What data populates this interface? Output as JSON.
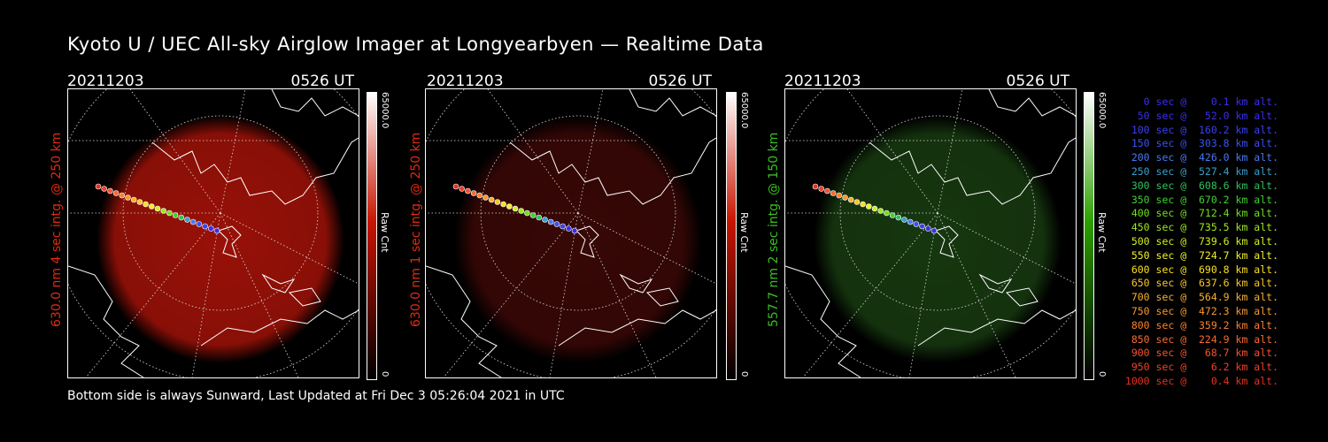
{
  "title": "Kyoto U / UEC All-sky Airglow Imager at Longyearbyen — Realtime Data",
  "panels": [
    {
      "date": "20211203",
      "time": "0526 UT",
      "ylabel": "630.0 nm  4 sec intg. @ 250 km",
      "label_color": "#e02a10",
      "cbar_max": "65000.0",
      "cbar_min": "0",
      "cbar_unit": "Raw Cnt",
      "cbar_color": "#c81400",
      "glow_color": "#a01208"
    },
    {
      "date": "20211203",
      "time": "0526 UT",
      "ylabel": "630.0 nm  1 sec intg. @ 250 km",
      "label_color": "#e02a10",
      "cbar_max": "65000.0",
      "cbar_min": "0",
      "cbar_unit": "Raw Cnt",
      "cbar_color": "#c81400",
      "glow_color": "#3a0806"
    },
    {
      "date": "20211203",
      "time": "0526 UT",
      "ylabel": "557.7 nm  2 sec intg. @ 150 km",
      "label_color": "#39c020",
      "cbar_max": "65000.0",
      "cbar_min": "0",
      "cbar_unit": "Raw Cnt",
      "cbar_color": "#2ca000",
      "glow_color": "#173a10"
    }
  ],
  "footer": "Bottom side is always Sunward, Last Updated at Fri Dec  3 05:26:04 2021 in UTC",
  "trajectory_legend": [
    {
      "text": "   0 sec @    0.1 km alt.",
      "color": "#3a2ee8"
    },
    {
      "text": "  50 sec @   52.0 km alt.",
      "color": "#3a2ee8"
    },
    {
      "text": " 100 sec @  160.2 km alt.",
      "color": "#3a40f0"
    },
    {
      "text": " 150 sec @  303.8 km alt.",
      "color": "#3a52f0"
    },
    {
      "text": " 200 sec @  426.0 km alt.",
      "color": "#4a78f0"
    },
    {
      "text": " 250 sec @  527.4 km alt.",
      "color": "#3aa0c8"
    },
    {
      "text": " 300 sec @  608.6 km alt.",
      "color": "#30c060"
    },
    {
      "text": " 350 sec @  670.2 km alt.",
      "color": "#40d030"
    },
    {
      "text": " 400 sec @  712.4 km alt.",
      "color": "#70e020"
    },
    {
      "text": " 450 sec @  735.5 km alt.",
      "color": "#a0e820"
    },
    {
      "text": " 500 sec @  739.6 km alt.",
      "color": "#d0f020"
    },
    {
      "text": " 550 sec @  724.7 km alt.",
      "color": "#f0f030"
    },
    {
      "text": " 600 sec @  690.8 km alt.",
      "color": "#f8e020"
    },
    {
      "text": " 650 sec @  637.6 km alt.",
      "color": "#f8c828"
    },
    {
      "text": " 700 sec @  564.9 km alt.",
      "color": "#f8b030"
    },
    {
      "text": " 750 sec @  472.3 km alt.",
      "color": "#f89830"
    },
    {
      "text": " 800 sec @  359.2 km alt.",
      "color": "#f88030"
    },
    {
      "text": " 850 sec @  224.9 km alt.",
      "color": "#f86a30"
    },
    {
      "text": " 900 sec @   68.7 km alt.",
      "color": "#f85030"
    },
    {
      "text": " 950 sec @    6.2 km alt.",
      "color": "#f04028"
    },
    {
      "text": "1000 sec @    0.4 km alt.",
      "color": "#e83020"
    }
  ]
}
